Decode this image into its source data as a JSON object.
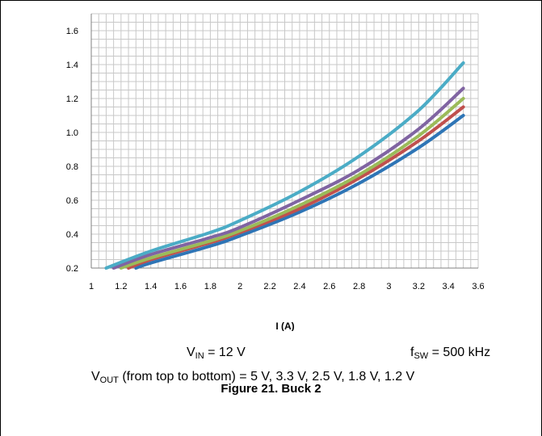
{
  "chart_data": {
    "type": "line",
    "xlabel": "I (A)",
    "ylabel": "",
    "xlim": [
      1,
      3.6
    ],
    "ylim": [
      0.2,
      1.7
    ],
    "x_ticks": [
      "1",
      "1.2",
      "1.4",
      "1.6",
      "1.8",
      "2",
      "2.2",
      "2.4",
      "2.6",
      "2.8",
      "3",
      "3.2",
      "3.4",
      "3.6"
    ],
    "y_ticks": [
      "0.2",
      "0.4",
      "0.6",
      "0.8",
      "1.0",
      "1.2",
      "1.4",
      "1.6"
    ],
    "grid": true,
    "legend": "none",
    "series": [
      {
        "color": "#4bacc6",
        "x": [
          1.1,
          1.4,
          1.8,
          2.0,
          2.4,
          2.8,
          3.2,
          3.5
        ],
        "values": [
          0.2,
          0.3,
          0.41,
          0.48,
          0.65,
          0.86,
          1.13,
          1.41
        ]
      },
      {
        "color": "#8064a2",
        "x": [
          1.15,
          1.4,
          1.8,
          2.0,
          2.4,
          2.8,
          3.2,
          3.5
        ],
        "values": [
          0.2,
          0.28,
          0.38,
          0.44,
          0.6,
          0.78,
          1.02,
          1.26
        ]
      },
      {
        "color": "#9bbb59",
        "x": [
          1.2,
          1.4,
          1.8,
          2.0,
          2.4,
          2.8,
          3.2,
          3.5
        ],
        "values": [
          0.2,
          0.26,
          0.36,
          0.42,
          0.57,
          0.75,
          0.98,
          1.2
        ]
      },
      {
        "color": "#c0504d",
        "x": [
          1.25,
          1.4,
          1.8,
          2.0,
          2.4,
          2.8,
          3.2,
          3.5
        ],
        "values": [
          0.2,
          0.25,
          0.35,
          0.41,
          0.55,
          0.73,
          0.95,
          1.15
        ]
      },
      {
        "color": "#2e75b6",
        "x": [
          1.3,
          1.4,
          1.8,
          2.0,
          2.4,
          2.8,
          3.2,
          3.5
        ],
        "values": [
          0.2,
          0.23,
          0.33,
          0.39,
          0.53,
          0.7,
          0.91,
          1.1
        ]
      }
    ]
  },
  "conditions": {
    "vin_main": "V",
    "vin_sub": "IN",
    "vin_value": " = 12 V",
    "fsw_main": "f",
    "fsw_sub": "SW",
    "fsw_value": " = 500 kHz",
    "vout_main": "V",
    "vout_sub": "OUT",
    "vout_value": " (from top to bottom) = 5 V, 3.3 V, 2.5 V, 1.8 V, 1.2 V"
  },
  "caption": "Figure 21. Buck 2"
}
